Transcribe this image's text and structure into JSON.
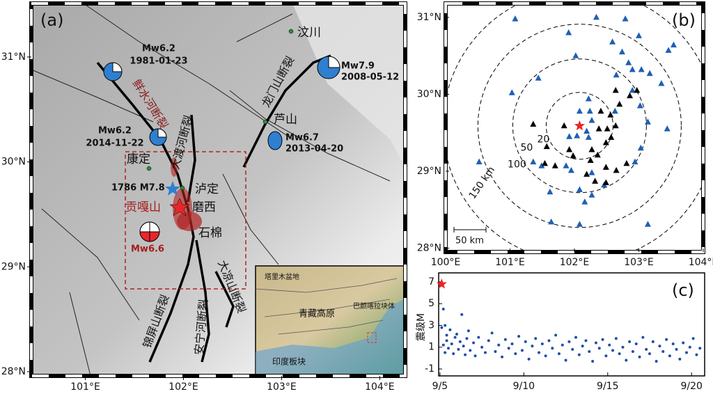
{
  "panel_a": {
    "label": "(a)",
    "xlim": [
      100.45,
      104.26
    ],
    "ylim": [
      27.96,
      31.51
    ],
    "xticks": [
      {
        "value": 101,
        "label": "101°E"
      },
      {
        "value": 102,
        "label": "102°E"
      },
      {
        "value": 103,
        "label": "103°E"
      },
      {
        "value": 104,
        "label": "104°E"
      }
    ],
    "yticks": [
      {
        "value": 28,
        "label": "28°N"
      },
      {
        "value": 29,
        "label": "29°N"
      },
      {
        "value": 30,
        "label": "30°N"
      },
      {
        "value": 31,
        "label": "31°N"
      }
    ],
    "places": [
      "汶川",
      "芦山",
      "康定",
      "泸定",
      "磨西",
      "石棉",
      "贡嘎山"
    ],
    "faults": [
      "鲜水河断裂",
      "大渡河断裂",
      "龙门山断裂",
      "大凉山断裂",
      "锦屏山断裂",
      "安宁河断裂"
    ],
    "events": [
      {
        "mag": "Mw6.2",
        "date": "1981-01-23"
      },
      {
        "mag": "Mw7.9",
        "date": "2008-05-12"
      },
      {
        "mag": "Mw6.2",
        "date": "2014-11-22"
      },
      {
        "mag": "Mw6.7",
        "date": "2013-04-20"
      }
    ],
    "historic": "1786 M7.8",
    "mainshock": "Mw6.6",
    "inset": [
      "塔里木盆地",
      "青藏高原",
      "巴颜喀拉块体",
      "印度板块"
    ]
  },
  "panel_b": {
    "type": "scatter",
    "label": "(b)",
    "xlim": [
      100,
      104
    ],
    "ylim": [
      27.95,
      31.18
    ],
    "xticks": [
      {
        "value": 100,
        "label": "100°E"
      },
      {
        "value": 101,
        "label": "101°E"
      },
      {
        "value": 102,
        "label": "102°E"
      },
      {
        "value": 103,
        "label": "103°E"
      },
      {
        "value": 104,
        "label": "104°E"
      }
    ],
    "yticks": [
      {
        "value": 28,
        "label": "28°N"
      },
      {
        "value": 29,
        "label": "29°N"
      },
      {
        "value": 30,
        "label": "30°N"
      },
      {
        "value": 31,
        "label": "31°N"
      }
    ],
    "rings": [
      "20",
      "50",
      "100",
      "150 km"
    ],
    "scale_bar": "50 km",
    "epicenter": {
      "x": 102.08,
      "y": 29.59,
      "color": "#e8262a"
    },
    "stations": [
      {
        "color": "#1f5fb4",
        "x": [
          101.08,
          102.34,
          102.79,
          101.91,
          103.0,
          103.54,
          102.59,
          102.74,
          103.46,
          102.02,
          102.84,
          102.9,
          103.04,
          103.17,
          102.65,
          101.44,
          103.35,
          102.9,
          101.03,
          102.22,
          103.02,
          102.63,
          102.08,
          102.27,
          102.19,
          103.14,
          103.44,
          100.52,
          102.24,
          101.92,
          102.04,
          102.22,
          103.03,
          102.94,
          101.36,
          101.49,
          101.87,
          102.27,
          101.62,
          102.08,
          102.27,
          102.16,
          101.64,
          102.08,
          103.14,
          102.46,
          101.95
        ],
        "y": [
          30.98,
          31.0,
          30.98,
          30.8,
          30.76,
          30.64,
          30.68,
          30.55,
          30.57,
          30.5,
          30.41,
          30.32,
          30.32,
          30.27,
          30.25,
          30.21,
          30.14,
          30.05,
          30.02,
          29.94,
          29.85,
          29.78,
          29.78,
          29.66,
          29.52,
          29.64,
          29.55,
          29.12,
          29.78,
          29.45,
          29.46,
          29.44,
          29.3,
          29.12,
          29.12,
          29.07,
          29.07,
          28.98,
          28.73,
          28.76,
          28.69,
          28.6,
          28.34,
          28.31,
          28.31,
          28.82,
          29.01
        ]
      },
      {
        "color": "#000000",
        "x": [
          102.86,
          102.97,
          102.7,
          102.56,
          102.41,
          102.51,
          102.64,
          102.57,
          102.49,
          101.84,
          101.36,
          101.92,
          101.57,
          102.27,
          102.36,
          102.25,
          101.98,
          102.49,
          102.65,
          102.81,
          102.19,
          102.32,
          102.49,
          101.54,
          101.7,
          102.64,
          102.38
        ],
        "y": [
          29.98,
          30.05,
          29.87,
          29.73,
          29.78,
          29.55,
          29.59,
          29.44,
          29.37,
          29.59,
          29.61,
          29.28,
          29.32,
          29.28,
          29.21,
          29.14,
          29.2,
          29.05,
          29.01,
          29.1,
          28.96,
          28.87,
          28.85,
          29.1,
          29.07,
          30.05,
          29.55
        ]
      }
    ]
  },
  "panel_c": {
    "type": "scatter",
    "label": "(c)",
    "ylabel": "震级M",
    "xlim": [
      4.92,
      20.78
    ],
    "ylim": [
      -1.64,
      7.83
    ],
    "xticks": [
      {
        "value": 5,
        "label": "9/5"
      },
      {
        "value": 10,
        "label": "9/10"
      },
      {
        "value": 15,
        "label": "9/15"
      },
      {
        "value": 20,
        "label": "9/20"
      }
    ],
    "yticks": [
      -1,
      1,
      3,
      5,
      7
    ],
    "color": "#1f4fa8",
    "mainshock": {
      "x": 5.1,
      "y": 6.8,
      "color": "#e8262a"
    },
    "x": [
      5.1,
      5.2,
      5.2,
      5.3,
      5.3,
      5.4,
      5.4,
      5.5,
      5.6,
      5.7,
      5.8,
      5.9,
      6.0,
      6.1,
      6.2,
      6.3,
      6.4,
      6.5,
      6.6,
      6.7,
      6.8,
      7.0,
      7.1,
      7.3,
      7.5,
      7.7,
      7.9,
      8.1,
      8.3,
      8.5,
      8.7,
      8.9,
      9.1,
      9.3,
      9.5,
      9.7,
      9.9,
      10.1,
      10.3,
      10.5,
      10.7,
      10.9,
      11.1,
      11.3,
      11.5,
      11.7,
      11.9,
      12.1,
      12.3,
      12.5,
      12.7,
      12.9,
      13.1,
      13.3,
      13.5,
      13.7,
      13.9,
      14.1,
      14.3,
      14.5,
      14.7,
      14.9,
      15.1,
      15.3,
      15.5,
      15.7,
      15.9,
      16.1,
      16.3,
      16.5,
      16.7,
      16.9,
      17.1,
      17.3,
      17.5,
      17.7,
      17.9,
      18.1,
      18.3,
      18.5,
      18.7,
      18.9,
      19.1,
      19.3,
      19.5,
      19.7,
      19.9,
      20.1,
      20.3,
      20.5
    ],
    "y": [
      2.8,
      4.5,
      1.2,
      3.0,
      0.5,
      2.1,
      1.6,
      0.9,
      2.6,
      1.3,
      0.4,
      1.9,
      2.2,
      0.8,
      1.5,
      4.0,
      1.1,
      0.3,
      1.8,
      2.5,
      0.7,
      1.4,
      0.2,
      1.9,
      1.0,
      0.5,
      1.6,
      2.3,
      0.6,
      1.2,
      0.1,
      1.7,
      0.9,
      1.3,
      0.4,
      2.0,
      0.7,
      1.5,
      -0.1,
      1.1,
      1.8,
      0.5,
      1.3,
      0.2,
      1.6,
      0.9,
      2.1,
      0.4,
      1.2,
      -0.2,
      1.5,
      0.8,
      1.9,
      0.3,
      1.1,
      1.6,
      0.6,
      -0.3,
      1.4,
      0.9,
      1.7,
      0.2,
      1.2,
      0.7,
      1.8,
      0.4,
      1.0,
      -0.2,
      1.5,
      0.6,
      1.3,
      0.1,
      1.9,
      0.8,
      0.4,
      1.5,
      -0.3,
      1.1,
      0.6,
      1.7,
      0.2,
      1.3,
      0.8,
      -0.1,
      1.4,
      0.5,
      1.0,
      1.8,
      0.3,
      0.9
    ]
  }
}
